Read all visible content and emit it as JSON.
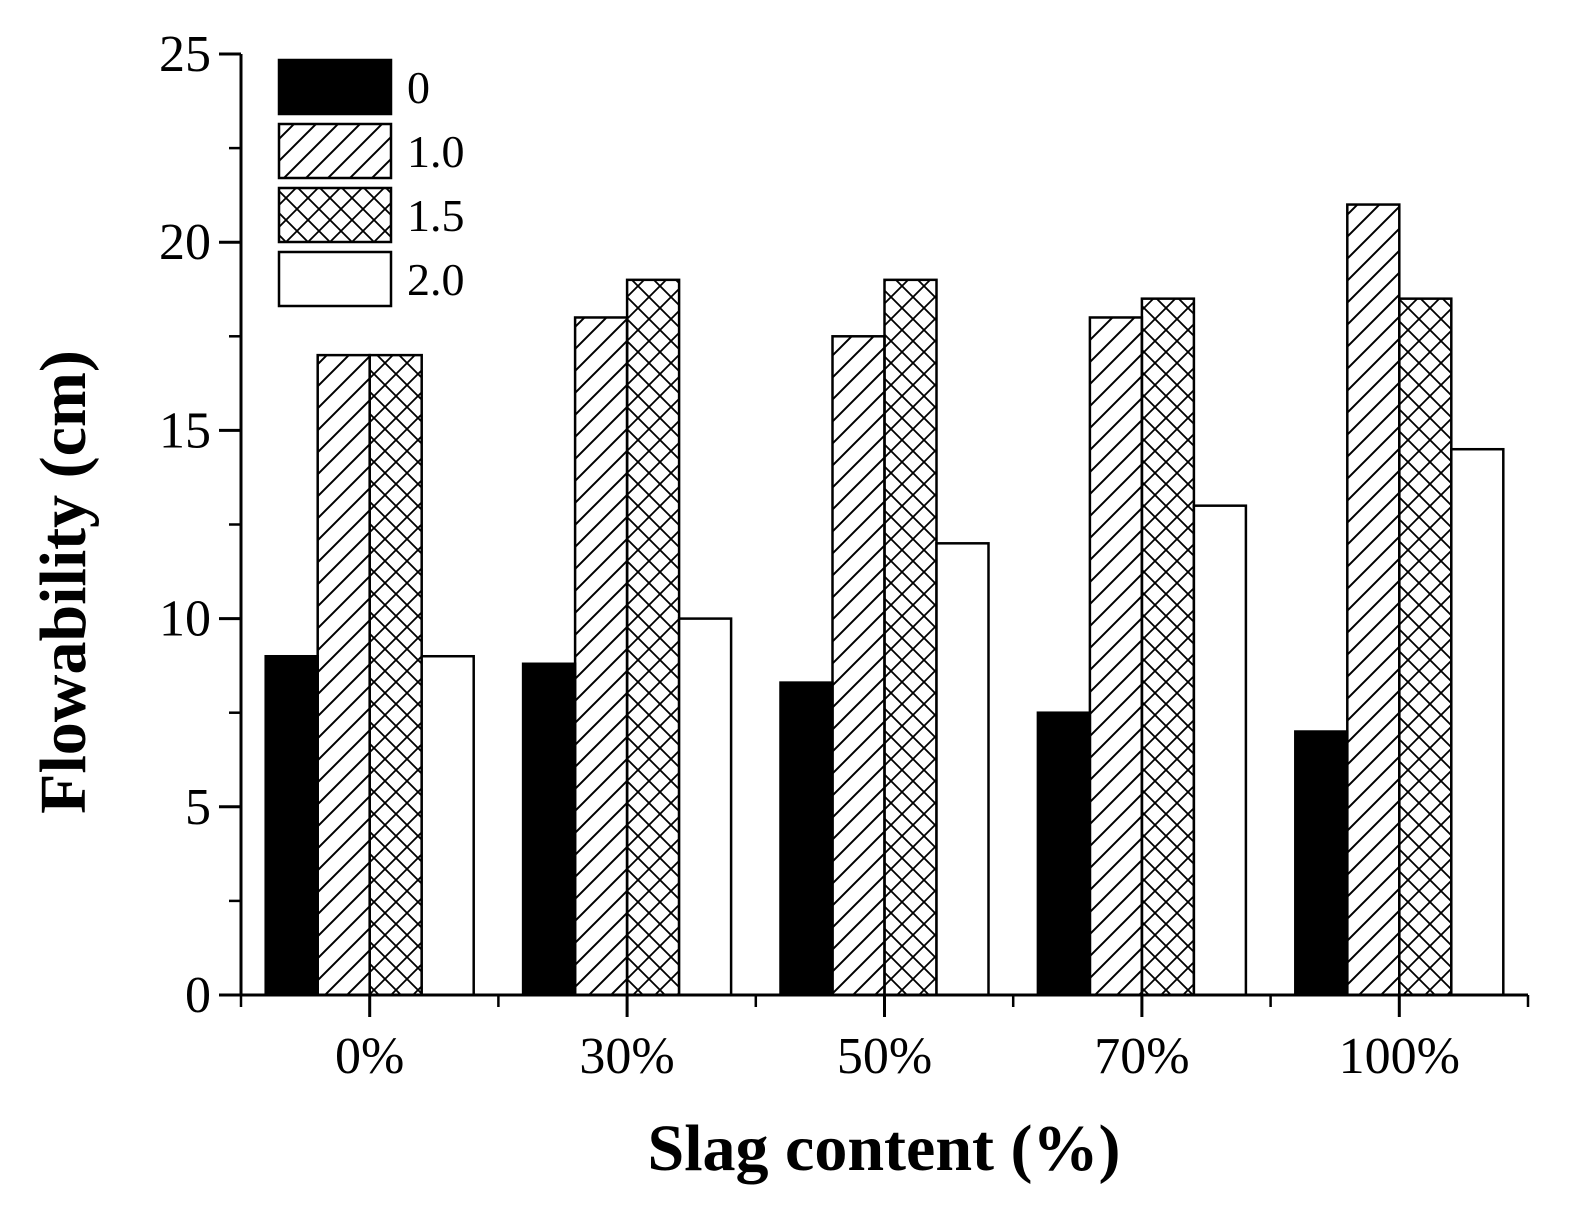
{
  "chart_data": {
    "type": "bar",
    "title": "",
    "xlabel": "Slag content (%)",
    "ylabel": "Flowability (cm)",
    "ylim": [
      0,
      25
    ],
    "yticks": [
      "0",
      "5",
      "10",
      "15",
      "20",
      "25"
    ],
    "categories": [
      "0%",
      "30%",
      "50%",
      "70%",
      "100%"
    ],
    "legend_position": "top-left",
    "series": [
      {
        "name": "0",
        "fill": "solid",
        "values": [
          9.0,
          8.8,
          8.3,
          7.5,
          7.0
        ]
      },
      {
        "name": "1.0",
        "fill": "hatch",
        "values": [
          17.0,
          18.0,
          17.5,
          18.0,
          21.0
        ]
      },
      {
        "name": "1.5",
        "fill": "crosshatch",
        "values": [
          17.0,
          19.0,
          19.0,
          18.5,
          18.5
        ]
      },
      {
        "name": "2.0",
        "fill": "empty",
        "values": [
          9.0,
          10.0,
          12.0,
          13.0,
          14.5
        ]
      }
    ],
    "colors": {
      "ink": "#000000",
      "background": "#ffffff"
    }
  }
}
